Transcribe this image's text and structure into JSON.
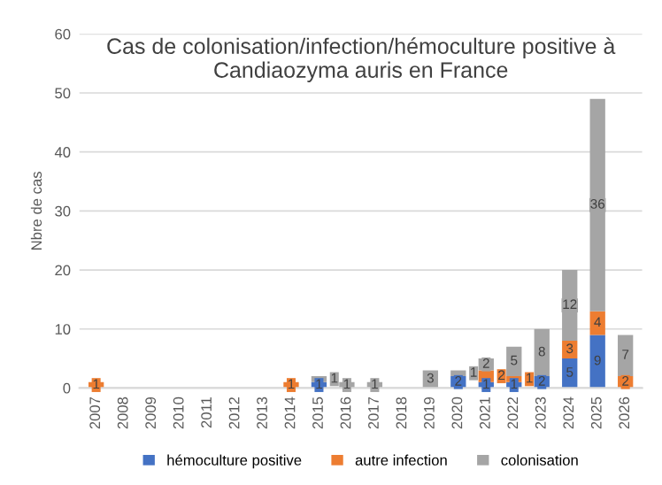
{
  "chart_data": {
    "type": "bar",
    "title": "Cas de colonisation/infection/hémoculture positive à\nCandiaozyma auris en France",
    "ylabel": "Nbre de cas",
    "categories": [
      "2007",
      "2008",
      "2009",
      "2010",
      "2011",
      "2012",
      "2013",
      "2014",
      "2015",
      "2016",
      "2017",
      "2018",
      "2019",
      "2020",
      "2021",
      "2022",
      "2023",
      "2024",
      "2025",
      "2026"
    ],
    "stacked": true,
    "data_labels": true,
    "grid": "y",
    "legend": "bottom",
    "ylim": [
      0,
      60
    ],
    "yticks": [
      0,
      10,
      20,
      30,
      40,
      50,
      60
    ],
    "series": [
      {
        "name": "hémoculture positive",
        "color": "#4472c4",
        "values": [
          null,
          null,
          null,
          null,
          null,
          null,
          null,
          null,
          1,
          null,
          null,
          null,
          null,
          2,
          1,
          1,
          2,
          5,
          9,
          null
        ]
      },
      {
        "name": "autre infection",
        "color": "#ed7d31",
        "values": [
          1,
          null,
          null,
          null,
          null,
          null,
          null,
          1,
          null,
          null,
          null,
          null,
          null,
          null,
          2,
          1,
          null,
          3,
          4,
          2
        ]
      },
      {
        "name": "colonisation",
        "color": "#a5a5a5",
        "values": [
          null,
          null,
          null,
          null,
          null,
          null,
          null,
          null,
          1,
          1,
          1,
          null,
          3,
          1,
          2,
          5,
          8,
          12,
          36,
          7
        ]
      }
    ]
  }
}
